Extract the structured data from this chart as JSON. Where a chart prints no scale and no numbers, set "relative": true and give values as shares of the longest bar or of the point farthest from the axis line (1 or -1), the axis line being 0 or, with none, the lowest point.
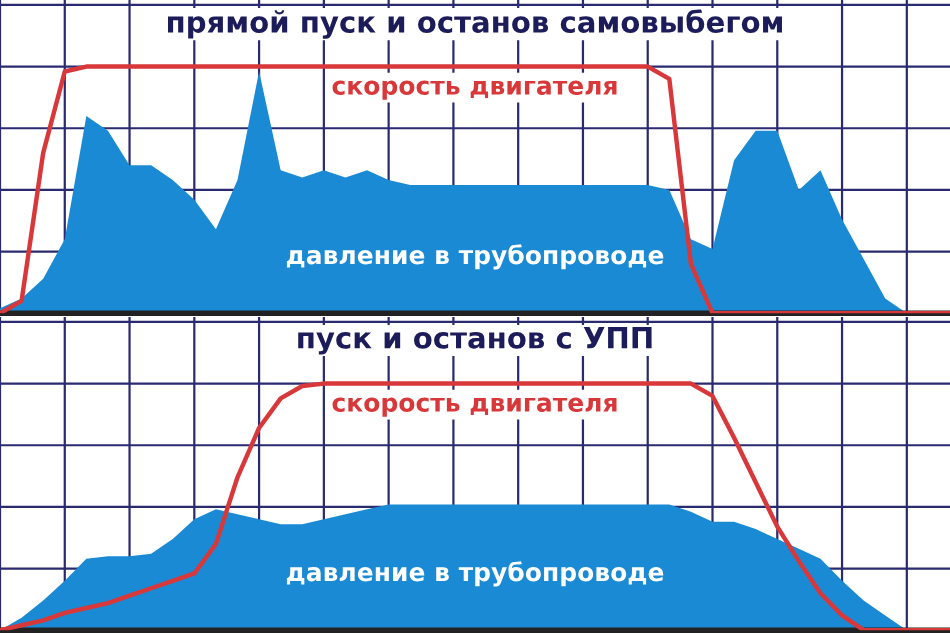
{
  "chart_data": [
    {
      "type": "area",
      "title": "прямой пуск и останов самовыбегом",
      "relative": true,
      "grid": true,
      "legend": false,
      "categories": [
        null,
        null,
        null,
        null,
        null,
        null,
        null,
        null,
        null,
        null,
        null,
        null,
        null,
        null,
        null,
        null,
        null,
        null,
        null,
        null,
        null,
        null,
        null,
        null,
        null,
        null,
        null,
        null,
        null,
        null,
        null,
        null,
        null,
        null,
        null,
        null,
        null,
        null,
        null,
        null,
        null,
        null,
        null,
        null,
        null
      ],
      "series": [
        {
          "name": "давление в трубопроводе",
          "color": "#1a8ad4",
          "values": [
            0.02,
            0.06,
            0.14,
            0.3,
            0.8,
            0.74,
            0.6,
            0.6,
            0.54,
            0.46,
            0.34,
            0.54,
            0.98,
            0.58,
            0.55,
            0.58,
            0.55,
            0.58,
            0.54,
            0.52,
            0.52,
            0.52,
            0.52,
            0.52,
            0.52,
            0.52,
            0.52,
            0.52,
            0.52,
            0.52,
            0.52,
            0.5,
            0.3,
            0.26,
            0.62,
            0.74,
            0.74,
            0.5,
            0.58,
            0.38,
            0.22,
            0.06,
            0,
            0,
            0
          ]
        },
        {
          "name": "скорость двигателя",
          "type": "line",
          "color": "#d8383a",
          "values": [
            0,
            0.05,
            0.65,
            0.98,
            1,
            1,
            1,
            1,
            1,
            1,
            1,
            1,
            1,
            1,
            1,
            1,
            1,
            1,
            1,
            1,
            1,
            1,
            1,
            1,
            1,
            1,
            1,
            1,
            1,
            1,
            1,
            0.95,
            0.2,
            0,
            0,
            0,
            0,
            0,
            0,
            0,
            0,
            0,
            0,
            0,
            0
          ]
        }
      ]
    },
    {
      "type": "area",
      "title": "пуск и останов с УПП",
      "relative": true,
      "grid": true,
      "legend": false,
      "categories": [
        null,
        null,
        null,
        null,
        null,
        null,
        null,
        null,
        null,
        null,
        null,
        null,
        null,
        null,
        null,
        null,
        null,
        null,
        null,
        null,
        null,
        null,
        null,
        null,
        null,
        null,
        null,
        null,
        null,
        null,
        null,
        null,
        null,
        null,
        null,
        null,
        null,
        null,
        null,
        null,
        null,
        null,
        null,
        null,
        null
      ],
      "series": [
        {
          "name": "давление в трубопроводе",
          "color": "#1a8ad4",
          "values": [
            0,
            0.05,
            0.12,
            0.2,
            0.29,
            0.3,
            0.3,
            0.31,
            0.37,
            0.45,
            0.49,
            0.47,
            0.45,
            0.43,
            0.43,
            0.45,
            0.47,
            0.49,
            0.51,
            0.51,
            0.51,
            0.51,
            0.51,
            0.51,
            0.51,
            0.51,
            0.51,
            0.51,
            0.51,
            0.51,
            0.51,
            0.51,
            0.48,
            0.44,
            0.44,
            0.41,
            0.37,
            0.33,
            0.29,
            0.2,
            0.12,
            0.06,
            0,
            0,
            0
          ]
        },
        {
          "name": "скорость двигателя",
          "type": "line",
          "color": "#d8383a",
          "values": [
            0,
            0.02,
            0.04,
            0.07,
            0.09,
            0.11,
            0.14,
            0.17,
            0.2,
            0.23,
            0.35,
            0.62,
            0.82,
            0.94,
            0.99,
            1,
            1,
            1,
            1,
            1,
            1,
            1,
            1,
            1,
            1,
            1,
            1,
            1,
            1,
            1,
            1,
            1,
            1,
            0.95,
            0.78,
            0.6,
            0.42,
            0.28,
            0.15,
            0.06,
            0,
            0,
            0,
            0,
            0
          ]
        }
      ]
    }
  ]
}
